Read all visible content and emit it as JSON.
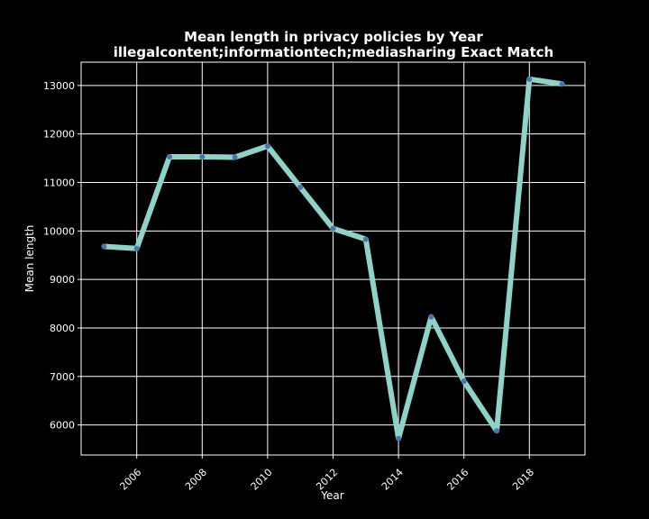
{
  "chart_data": {
    "type": "line",
    "title_line1": "Mean length in privacy policies by Year",
    "title_line2": "illegalcontent;informationtech;mediasharing Exact Match",
    "xlabel": "Year",
    "ylabel": "Mean length",
    "x": [
      2005,
      2006,
      2007,
      2008,
      2009,
      2010,
      2011,
      2012,
      2013,
      2014,
      2015,
      2016,
      2017,
      2018,
      2019
    ],
    "values": [
      9680,
      9640,
      11530,
      11530,
      11520,
      11750,
      10900,
      10050,
      9830,
      5720,
      8230,
      6900,
      5880,
      13130,
      13030
    ],
    "xticks": [
      2006,
      2008,
      2010,
      2012,
      2014,
      2016,
      2018
    ],
    "yticks": [
      6000,
      7000,
      8000,
      9000,
      10000,
      11000,
      12000,
      13000
    ],
    "xlim": [
      2004.3,
      2019.7
    ],
    "ylim": [
      5380,
      13480
    ],
    "grid": true,
    "colors": {
      "background": "#000000",
      "line": "#8dd3c7",
      "marker": "#4c72b0",
      "grid": "#ffffff",
      "text": "#ffffff"
    }
  }
}
